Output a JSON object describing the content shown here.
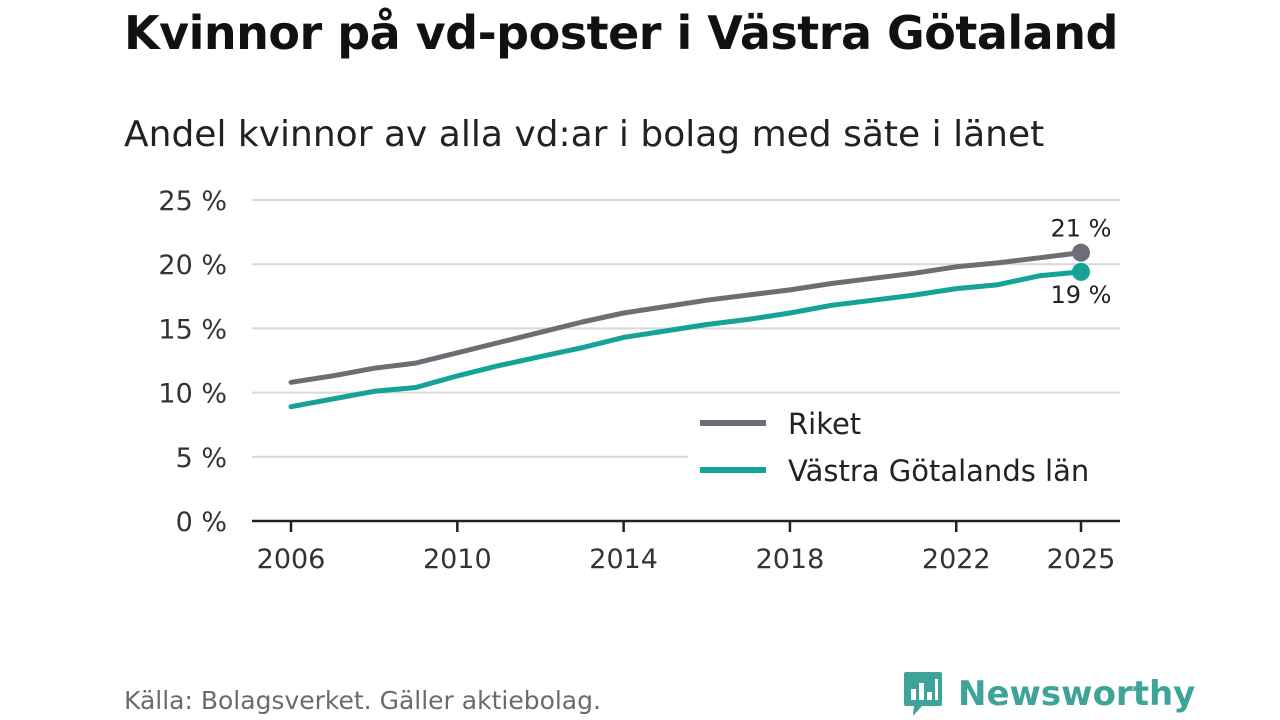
{
  "header": {
    "title": "Kvinnor på vd-poster i Västra Götaland",
    "subtitle": "Andel kvinnor av alla vd:ar i bolag med säte i länet"
  },
  "footer": {
    "source": "Källa: Bolagsverket. Gäller aktiebolag.",
    "brand": "Newsworthy",
    "brand_icon": "bar-chart-speech-bubble-icon"
  },
  "colors": {
    "riket": "#6e6d75",
    "vg": "#14a396",
    "grid": "#d9d9d9",
    "axis": "#222222",
    "brand": "#3ea49a"
  },
  "chart_data": {
    "type": "line",
    "title": "Kvinnor på vd-poster i Västra Götaland",
    "subtitle": "Andel kvinnor av alla vd:ar i bolag med säte i länet",
    "xlabel": "",
    "ylabel": "",
    "x": [
      2006,
      2007,
      2008,
      2009,
      2010,
      2011,
      2012,
      2013,
      2014,
      2015,
      2016,
      2017,
      2018,
      2019,
      2020,
      2021,
      2022,
      2023,
      2024,
      2025
    ],
    "xlim": [
      2006,
      2025
    ],
    "ylim": [
      0,
      25
    ],
    "x_ticks": [
      "2006",
      "2010",
      "2014",
      "2018",
      "2022",
      "2025"
    ],
    "y_ticks": [
      "0 %",
      "5 %",
      "10 %",
      "15 %",
      "20 %",
      "25 %"
    ],
    "grid": true,
    "legend_position": "bottom-right",
    "series": [
      {
        "name": "Riket",
        "color": "#6e6d75",
        "values": [
          10.8,
          11.3,
          11.9,
          12.3,
          13.1,
          13.9,
          14.7,
          15.5,
          16.2,
          16.7,
          17.2,
          17.6,
          18.0,
          18.5,
          18.9,
          19.3,
          19.8,
          20.1,
          20.5,
          20.9
        ],
        "end_label": "21 %"
      },
      {
        "name": "Västra Götalands län",
        "color": "#14a396",
        "values": [
          8.9,
          9.5,
          10.1,
          10.4,
          11.3,
          12.1,
          12.8,
          13.5,
          14.3,
          14.8,
          15.3,
          15.7,
          16.2,
          16.8,
          17.2,
          17.6,
          18.1,
          18.4,
          19.1,
          19.4
        ],
        "end_label": "19 %"
      }
    ]
  }
}
